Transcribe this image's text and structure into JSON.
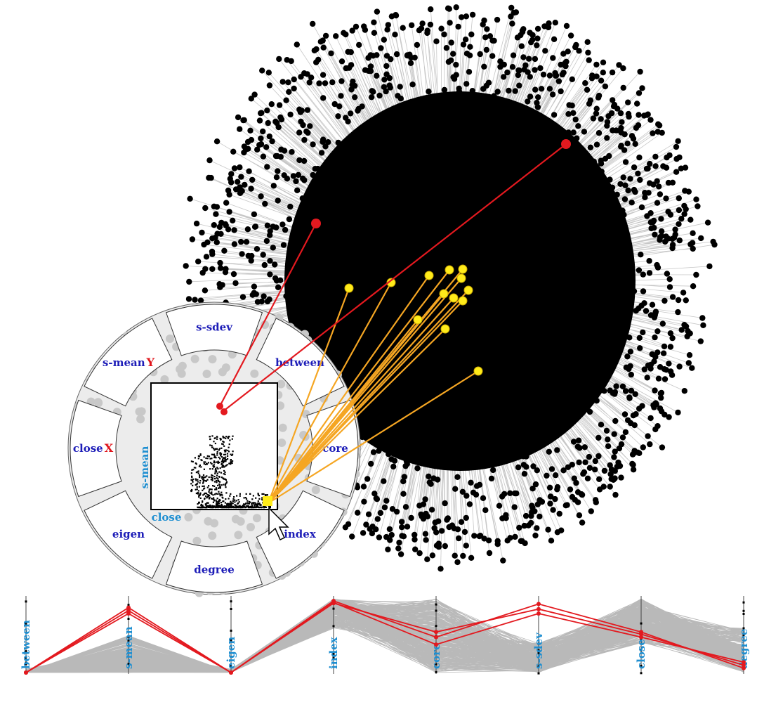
{
  "colors": {
    "node": "#000000",
    "edge": "#bdbdbd",
    "highlight": "#e3191f",
    "selection": "#ffeb1a",
    "selection_line": "#f5a623",
    "lens_bg": "#d9d9d9",
    "axis_label": "#1f8fd1",
    "ring_label": "#1d1db8",
    "pc_line": "#808080"
  },
  "lens": {
    "segments": [
      {
        "name": "between",
        "label": "between",
        "mark": ""
      },
      {
        "name": "core",
        "label": "core",
        "mark": ""
      },
      {
        "name": "index",
        "label": "index",
        "mark": ""
      },
      {
        "name": "degree",
        "label": "degree",
        "mark": ""
      },
      {
        "name": "eigen",
        "label": "eigen",
        "mark": ""
      },
      {
        "name": "close",
        "label": "close",
        "mark": "X"
      },
      {
        "name": "s-mean",
        "label": "s-mean",
        "mark": "Y"
      },
      {
        "name": "s-sdev",
        "label": "s-sdev",
        "mark": ""
      }
    ],
    "scatter": {
      "x_axis": "close",
      "y_axis": "s-mean"
    },
    "cursor_icon": "arrow-cursor-icon"
  },
  "parallel_coordinates": {
    "axes": [
      "between",
      "s-mean",
      "eigen",
      "index",
      "core",
      "s-sdev",
      "close",
      "degree"
    ],
    "highlighted_series": [
      [
        0.0,
        0.88,
        0.0,
        0.97,
        0.48,
        0.93,
        0.55,
        0.06
      ],
      [
        0.0,
        0.8,
        0.0,
        0.94,
        0.55,
        0.86,
        0.52,
        0.1
      ],
      [
        0.0,
        0.84,
        0.0,
        0.95,
        0.38,
        0.8,
        0.48,
        0.14
      ]
    ]
  },
  "chart_data": [
    {
      "type": "network",
      "description_of_view": "node-link graph",
      "highlighted_nodes": 2,
      "selected_nodes": 13
    },
    {
      "type": "scatter",
      "xlabel": "close",
      "ylabel": "s-mean"
    },
    {
      "type": "parallel-coordinates",
      "axes": [
        "between",
        "s-mean",
        "eigen",
        "index",
        "core",
        "s-sdev",
        "close",
        "degree"
      ]
    }
  ]
}
